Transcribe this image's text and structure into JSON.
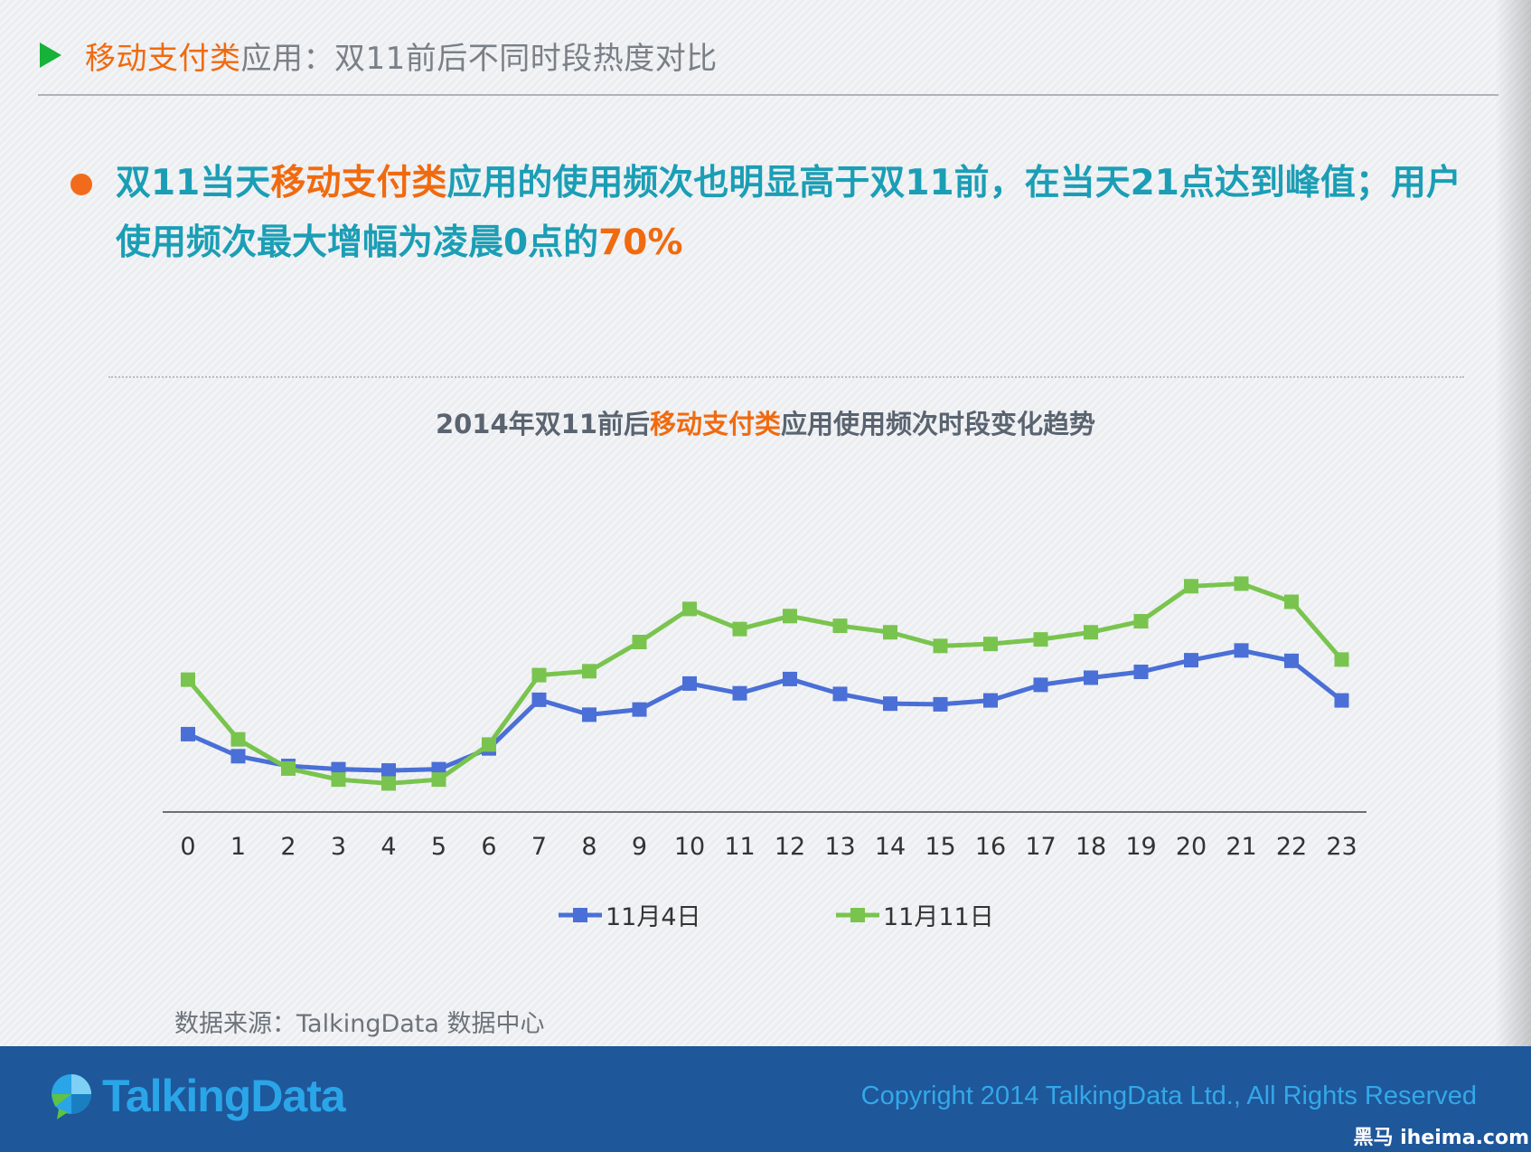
{
  "header": {
    "title_highlight": "移动支付类",
    "title_rest": "应用：双11前后不同时段热度对比"
  },
  "bullet": {
    "p1": "双",
    "p2": "11",
    "p3": "当天",
    "p4": "移动支付类",
    "p5": "应用的使用频次也明显高于双",
    "p6": "11",
    "p7": "前，在当天",
    "p8": "21",
    "p9": "点达到峰值；用户使用频次最大增幅为凌晨",
    "p10": "0",
    "p11": "点的",
    "p12": "70%"
  },
  "chart_title": {
    "p1": "2014年双11前后",
    "p2": "移动支付类",
    "p3": "应用使用频次时段变化趋势"
  },
  "chart_data": {
    "type": "line",
    "title": "2014年双11前后移动支付类应用使用频次时段变化趋势",
    "xlabel": "",
    "ylabel": "",
    "y_axis_shown": false,
    "grid": false,
    "legend_position": "bottom",
    "categories": [
      "0",
      "1",
      "2",
      "3",
      "4",
      "5",
      "6",
      "7",
      "8",
      "9",
      "10",
      "11",
      "12",
      "13",
      "14",
      "15",
      "16",
      "17",
      "18",
      "19",
      "20",
      "21",
      "22",
      "23"
    ],
    "series": [
      {
        "name": "11月4日",
        "color": "#4a6fd6",
        "marker": "square",
        "values": [
          120,
          86,
          71,
          66,
          64,
          66,
          98,
          173,
          150,
          158,
          198,
          183,
          205,
          182,
          167,
          166,
          172,
          196,
          207,
          216,
          234,
          249,
          233,
          172
        ]
      },
      {
        "name": "11月11日",
        "color": "#79c44e",
        "marker": "square",
        "values": [
          204,
          112,
          67,
          50,
          44,
          50,
          104,
          211,
          217,
          262,
          313,
          282,
          302,
          287,
          277,
          256,
          259,
          266,
          277,
          294,
          348,
          352,
          324,
          235
        ]
      }
    ]
  },
  "source": "数据来源：TalkingData 数据中心",
  "footer": {
    "logo": "TalkingData",
    "copyright": "Copyright 2014 TalkingData Ltd., All Rights Reserved",
    "watermark": "黑马 iheima.com"
  }
}
